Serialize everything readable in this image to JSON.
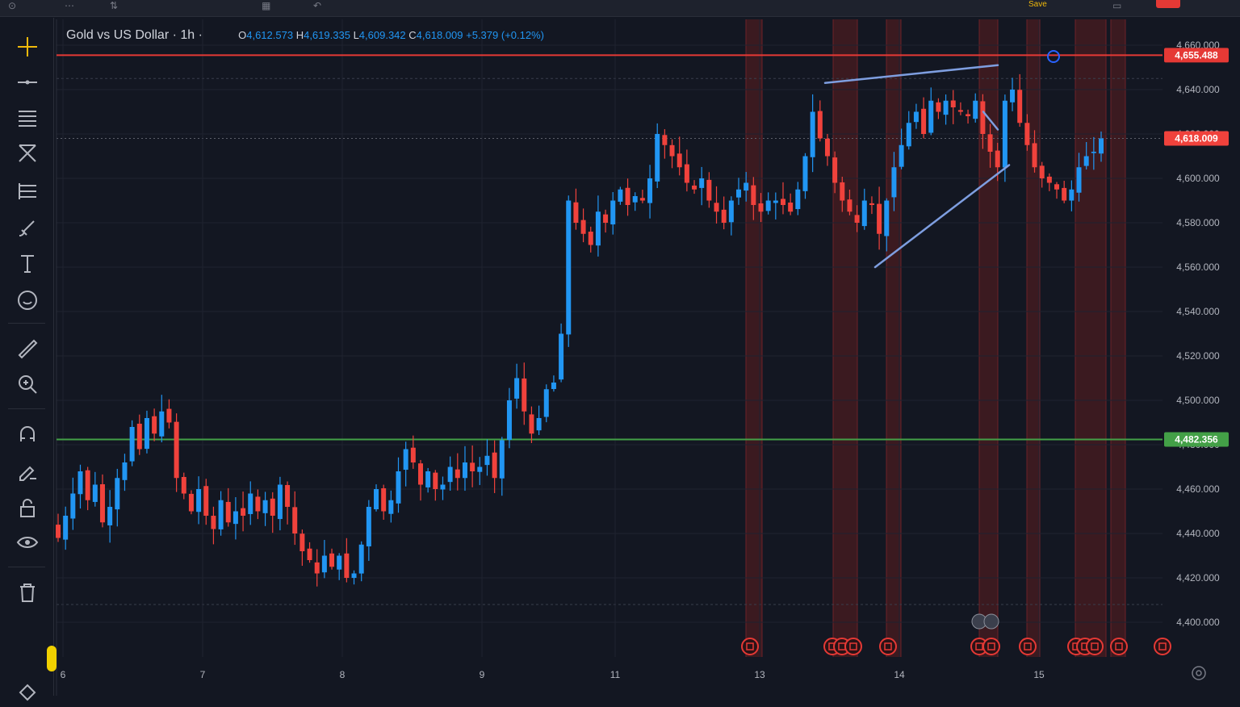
{
  "topbar": {
    "save_label": "Save"
  },
  "toolbar": {
    "tools": [
      {
        "icon": "crosshair-icon"
      },
      {
        "icon": "horizontal-line-icon"
      },
      {
        "icon": "fib-lines-icon"
      },
      {
        "icon": "pattern-icon"
      },
      {
        "icon": "channel-icon"
      },
      {
        "icon": "brush-icon"
      },
      {
        "icon": "text-icon"
      },
      {
        "icon": "emoji-icon"
      },
      {
        "icon": "ruler-icon"
      },
      {
        "icon": "zoom-icon"
      },
      {
        "icon": "magnet-icon"
      },
      {
        "icon": "pencil-lock-icon"
      },
      {
        "icon": "lock-icon"
      },
      {
        "icon": "eye-icon"
      },
      {
        "icon": "trash-icon"
      }
    ]
  },
  "legend": {
    "symbol": "Gold vs US Dollar · 1h ·",
    "o_key": "O",
    "o_val": "4,612.573",
    "h_key": "H",
    "h_val": "4,619.335",
    "l_key": "L",
    "l_val": "4,609.342",
    "c_key": "C",
    "c_val": "4,618.009",
    "change": "+5.379 (+0.12%)"
  },
  "colors": {
    "up": "#2196f3",
    "down": "#f0423c",
    "bg": "#131722",
    "grid": "#1f2330",
    "resistance": "#e53935",
    "support": "#43a047",
    "trend": "#7e9ee0",
    "session": "#4a1c20"
  },
  "chart_data": {
    "type": "candlestick",
    "title": "Gold vs US Dollar · 1h ·",
    "xlabel": "",
    "ylabel": "",
    "ylim": [
      4390,
      4663
    ],
    "y_ticks": [
      4400,
      4420,
      4440,
      4460,
      4480,
      4500,
      4520,
      4540,
      4560,
      4580,
      4600,
      4620,
      4640,
      4660
    ],
    "y_tick_labels": [
      "4,400.000",
      "4,420.000",
      "4,440.000",
      "4,460.000",
      "4,480.000",
      "4,500.000",
      "4,520.000",
      "4,540.000",
      "4,560.000",
      "4,580.000",
      "4,600.000",
      "4,620.000",
      "4,640.000",
      "4,660.000"
    ],
    "x_ticks": [
      "6",
      "7",
      "8",
      "9",
      "11",
      "13",
      "14",
      "15"
    ],
    "horizontal_levels": [
      {
        "value": 4655.488,
        "label": "4,655.488",
        "color": "#e53935"
      },
      {
        "value": 4482.356,
        "label": "4,482.356",
        "color": "#43a047"
      }
    ],
    "last_price": {
      "value": 4618.009,
      "label": "4,618.009"
    },
    "close_path": [
      4438,
      4448,
      4458,
      4468,
      4455,
      4462,
      4445,
      4452,
      4465,
      4472,
      4488,
      4478,
      4492,
      4485,
      4495,
      4490,
      4465,
      4458,
      4450,
      4460,
      4448,
      4442,
      4455,
      4445,
      4450,
      4448,
      4458,
      4450,
      4455,
      4448,
      4462,
      4452,
      4440,
      4432,
      4428,
      4422,
      4430,
      4425,
      4430,
      4420,
      4422,
      4435,
      4452,
      4460,
      4450,
      4455,
      4468,
      4478,
      4472,
      4462,
      4468,
      4460,
      4462,
      4470,
      4465,
      4472,
      4468,
      4470,
      4475,
      4465,
      4482,
      4500,
      4510,
      4495,
      4485,
      4492,
      4505,
      4508,
      4530,
      4590,
      4580,
      4575,
      4570,
      4585,
      4580,
      4590,
      4595,
      4588,
      4592,
      4590,
      4600,
      4620,
      4615,
      4610,
      4605,
      4598,
      4595,
      4600,
      4590,
      4585,
      4580,
      4590,
      4595,
      4598,
      4588,
      4585,
      4590,
      4590,
      4588,
      4585,
      4595,
      4610,
      4630,
      4618,
      4610,
      4598,
      4590,
      4585,
      4580,
      4590,
      4588,
      4575,
      4590,
      4605,
      4615,
      4625,
      4630,
      4620,
      4635,
      4630,
      4635,
      4632,
      4630,
      4628,
      4635,
      4620,
      4612,
      4605,
      4635,
      4640,
      4625,
      4615,
      4605,
      4600,
      4598,
      4595,
      4590,
      4595,
      4605,
      4610,
      4612,
      4618
    ],
    "candle_x_start": 72,
    "candle_x_end": 1364,
    "session_bands": [
      [
        924,
        944
      ],
      [
        1032,
        1062
      ],
      [
        1098,
        1116
      ],
      [
        1213,
        1236
      ],
      [
        1272,
        1288
      ],
      [
        1332,
        1370
      ],
      [
        1376,
        1394
      ]
    ],
    "trendlines": [
      {
        "from": [
          1022,
          4643
        ],
        "to": [
          1236,
          4651
        ]
      },
      {
        "from": [
          1084,
          4560
        ],
        "to": [
          1250,
          4606
        ]
      },
      {
        "from": [
          1218,
          4630
        ],
        "to": [
          1236,
          4622
        ]
      }
    ],
    "event_markers_x": [
      929,
      1031,
      1043,
      1057,
      1100,
      1213,
      1228,
      1273,
      1333,
      1344,
      1356,
      1386,
      1440
    ]
  }
}
